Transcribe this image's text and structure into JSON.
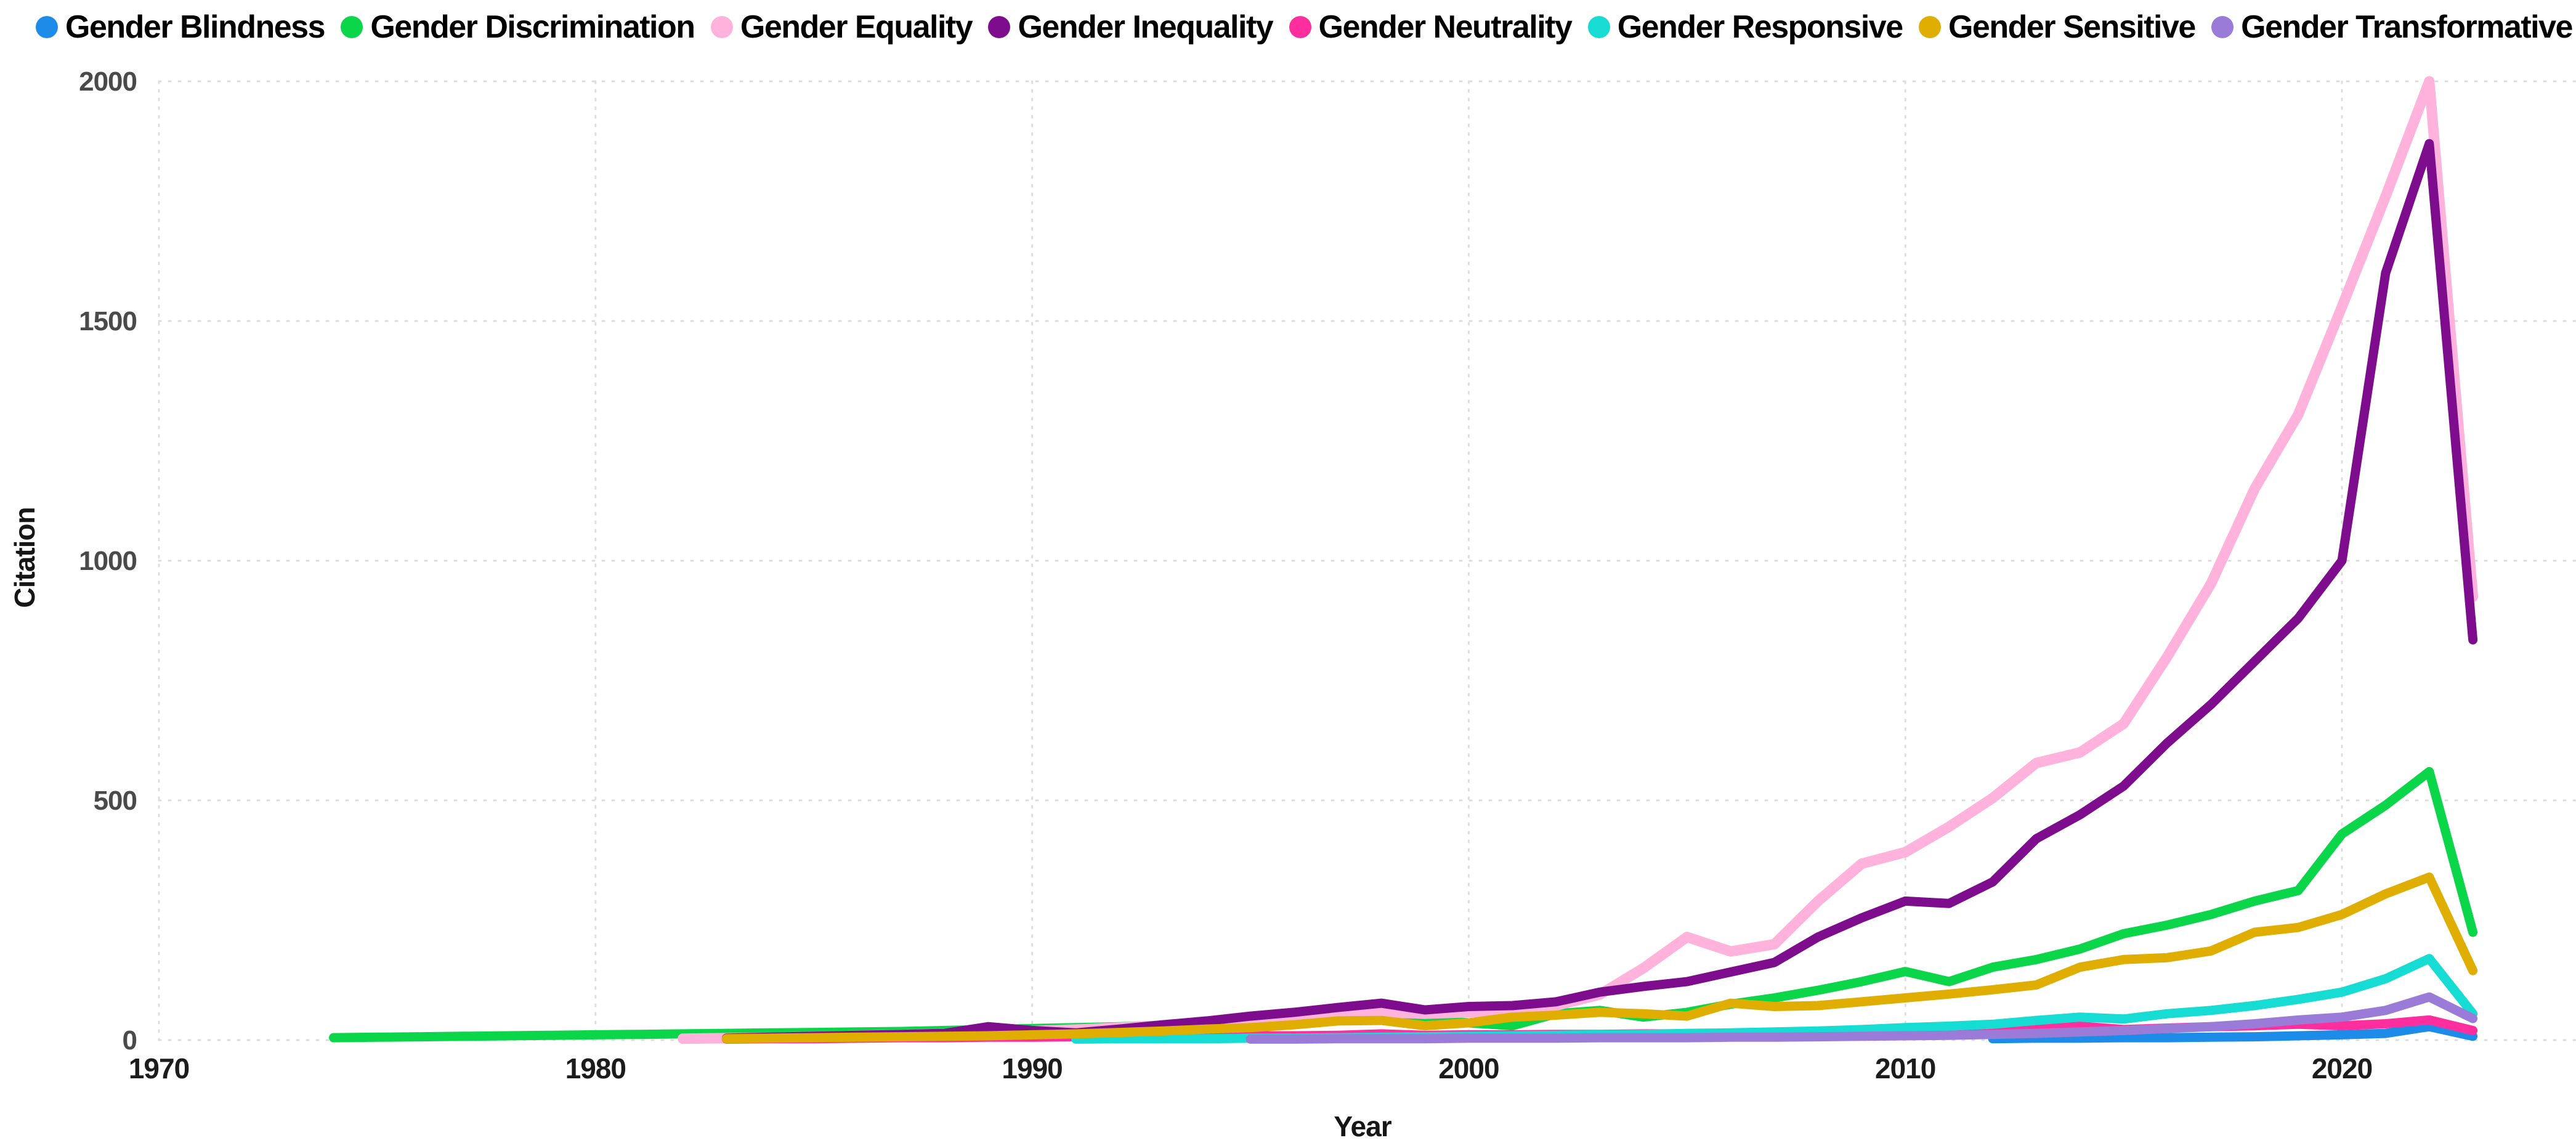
{
  "page": {
    "background": "#ffffff"
  },
  "legend": {
    "items": [
      {
        "label": "Gender Blindness",
        "color": "#1d8ce8"
      },
      {
        "label": "Gender Discrimination",
        "color": "#0bd64a"
      },
      {
        "label": "Gender Equality",
        "color": "#ffb3dc"
      },
      {
        "label": "Gender Inequality",
        "color": "#7e0d8e"
      },
      {
        "label": "Gender Neutrality",
        "color": "#ff2e9e"
      },
      {
        "label": "Gender Responsive",
        "color": "#16dcd4"
      },
      {
        "label": "Gender Sensitive",
        "color": "#e0ae00"
      },
      {
        "label": "Gender Transformative",
        "color": "#9b7bd8"
      }
    ]
  },
  "chart_data": {
    "type": "line",
    "title": "",
    "xlabel": "Year",
    "ylabel": "Citation",
    "x_ticks": [
      1970,
      1980,
      1990,
      2000,
      2010,
      2020
    ],
    "y_ticks": [
      0,
      500,
      1000,
      1500,
      2000
    ],
    "xlim": [
      1970,
      2025.5
    ],
    "ylim": [
      0,
      2170
    ],
    "grid": "dotted",
    "legend_position": "top",
    "grid_color": "#dcdcdc",
    "y_tick_color": "#4a4a4a",
    "x_tick_color": "#1c1c1c",
    "series": [
      {
        "name": "Gender Blindness",
        "color": "#1d8ce8",
        "start_year": 2012,
        "values": [
          3,
          4,
          4,
          5,
          5,
          6,
          7,
          9,
          11,
          14,
          28,
          8
        ]
      },
      {
        "name": "Gender Discrimination",
        "color": "#0bd64a",
        "start_year": 1974,
        "values": [
          5,
          6,
          7,
          8,
          9,
          10,
          11,
          12,
          13,
          14,
          15,
          16,
          17,
          18,
          20,
          22,
          24,
          26,
          28,
          31,
          36,
          40,
          43,
          45,
          46,
          42,
          36,
          30,
          55,
          62,
          48,
          58,
          75,
          88,
          104,
          122,
          143,
          122,
          152,
          168,
          190,
          222,
          240,
          262,
          290,
          312,
          430,
          490,
          560,
          225
        ]
      },
      {
        "name": "Gender Equality",
        "color": "#ffb3dc",
        "start_year": 1982,
        "values": [
          3,
          4,
          5,
          7,
          9,
          11,
          13,
          16,
          19,
          22,
          26,
          30,
          35,
          42,
          46,
          50,
          58,
          55,
          58,
          62,
          72,
          95,
          150,
          215,
          185,
          200,
          290,
          368,
          392,
          445,
          505,
          578,
          600,
          660,
          800,
          952,
          1150,
          1305,
          1530,
          1760,
          2000,
          925
        ]
      },
      {
        "name": "Gender Inequality",
        "color": "#7e0d8e",
        "start_year": 1983,
        "values": [
          4,
          6,
          8,
          10,
          12,
          14,
          28,
          20,
          15,
          23,
          32,
          40,
          50,
          58,
          68,
          77,
          63,
          70,
          72,
          80,
          100,
          112,
          122,
          142,
          162,
          215,
          255,
          290,
          285,
          330,
          420,
          470,
          530,
          620,
          700,
          790,
          880,
          1000,
          1600,
          1870,
          835
        ]
      },
      {
        "name": "Gender Neutrality",
        "color": "#ff2e9e",
        "start_year": 1983,
        "values": [
          2,
          3,
          3,
          4,
          5,
          5,
          6,
          6,
          7,
          7,
          8,
          8,
          9,
          9,
          10,
          13,
          10,
          11,
          11,
          12,
          12,
          13,
          13,
          14,
          15,
          16,
          17,
          18,
          19,
          21,
          26,
          29,
          22,
          25,
          28,
          30,
          33,
          30,
          34,
          42,
          20
        ]
      },
      {
        "name": "Gender Responsive",
        "color": "#16dcd4",
        "start_year": 1991,
        "values": [
          2,
          3,
          3,
          3,
          4,
          4,
          5,
          6,
          7,
          8,
          9,
          10,
          11,
          12,
          14,
          15,
          17,
          19,
          22,
          26,
          29,
          33,
          41,
          48,
          44,
          55,
          62,
          72,
          85,
          100,
          128,
          170,
          55
        ]
      },
      {
        "name": "Gender Sensitive",
        "color": "#e0ae00",
        "start_year": 1983,
        "values": [
          3,
          4,
          5,
          6,
          7,
          8,
          9,
          11,
          13,
          16,
          19,
          23,
          26,
          32,
          40,
          41,
          30,
          36,
          48,
          52,
          58,
          55,
          50,
          77,
          70,
          72,
          80,
          88,
          96,
          105,
          115,
          152,
          168,
          172,
          186,
          225,
          235,
          262,
          305,
          340,
          145
        ]
      },
      {
        "name": "Gender Transformative",
        "color": "#9b7bd8",
        "start_year": 1995,
        "values": [
          2,
          2,
          3,
          3,
          3,
          4,
          4,
          4,
          5,
          5,
          5,
          6,
          6,
          7,
          8,
          9,
          10,
          12,
          14,
          17,
          20,
          24,
          28,
          34,
          42,
          48,
          62,
          90,
          45
        ]
      }
    ]
  }
}
